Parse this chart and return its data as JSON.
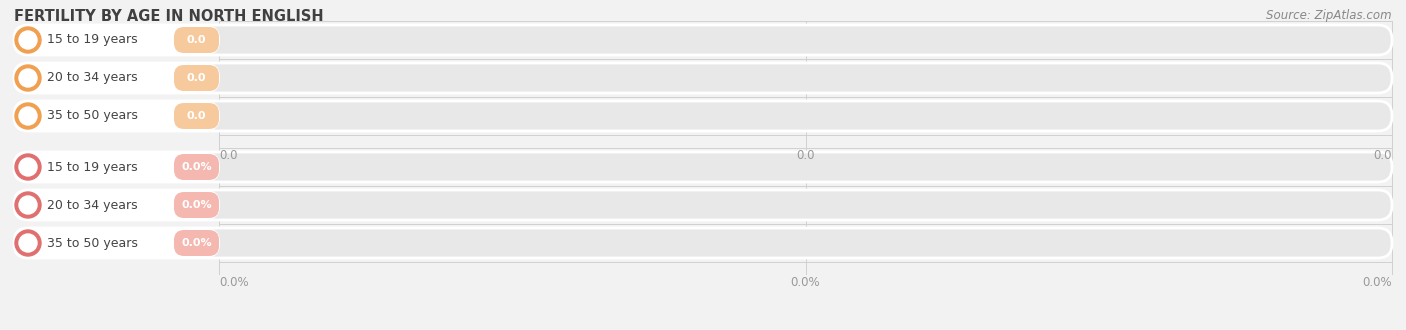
{
  "title": "FERTILITY BY AGE IN NORTH ENGLISH",
  "source": "Source: ZipAtlas.com",
  "top_categories": [
    "15 to 19 years",
    "20 to 34 years",
    "35 to 50 years"
  ],
  "bottom_categories": [
    "15 to 19 years",
    "20 to 34 years",
    "35 to 50 years"
  ],
  "top_labels": [
    "0.0",
    "0.0",
    "0.0"
  ],
  "bottom_labels": [
    "0.0%",
    "0.0%",
    "0.0%"
  ],
  "top_bar_fill_color": "#f7ca9e",
  "top_circle_color": "#f0a050",
  "bottom_bar_fill_color": "#f5b8b0",
  "bottom_circle_color": "#e07070",
  "top_axis_labels": [
    "0.0",
    "0.0",
    "0.0"
  ],
  "bottom_axis_labels": [
    "0.0%",
    "0.0%",
    "0.0%"
  ],
  "bg_color": "#f2f2f2",
  "bar_bg_color": "#e8e8e8",
  "bar_bg_edge_color": "#ffffff",
  "title_color": "#404040",
  "label_color": "#555555",
  "axis_tick_color": "#999999",
  "source_color": "#888888",
  "title_fontsize": 10.5,
  "label_fontsize": 9,
  "value_fontsize": 8,
  "source_fontsize": 8.5
}
